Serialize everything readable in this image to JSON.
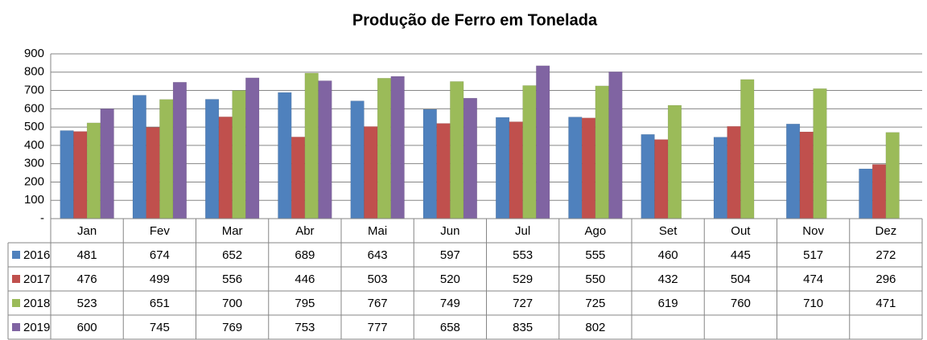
{
  "chart_data": {
    "type": "bar",
    "title": "Produção de Ferro em Tonelada",
    "categories": [
      "Jan",
      "Fev",
      "Mar",
      "Abr",
      "Mai",
      "Jun",
      "Jul",
      "Ago",
      "Set",
      "Out",
      "Nov",
      "Dez"
    ],
    "series": [
      {
        "name": "2016",
        "color": "#4f81bd",
        "values": [
          481,
          674,
          652,
          689,
          643,
          597,
          553,
          555,
          460,
          445,
          517,
          272
        ]
      },
      {
        "name": "2017",
        "color": "#c0504d",
        "values": [
          476,
          499,
          556,
          446,
          503,
          520,
          529,
          550,
          432,
          504,
          474,
          296
        ]
      },
      {
        "name": "2018",
        "color": "#9bbb59",
        "values": [
          523,
          651,
          700,
          795,
          767,
          749,
          727,
          725,
          619,
          760,
          710,
          471
        ]
      },
      {
        "name": "2019",
        "color": "#8064a2",
        "values": [
          600,
          745,
          769,
          753,
          777,
          658,
          835,
          802,
          null,
          null,
          null,
          null
        ]
      }
    ],
    "ylim": [
      0,
      900
    ],
    "yticks": [
      {
        "value": 0,
        "label": "-"
      },
      100,
      200,
      300,
      400,
      500,
      600,
      700,
      800,
      900
    ],
    "grid": true,
    "data_table": true
  }
}
